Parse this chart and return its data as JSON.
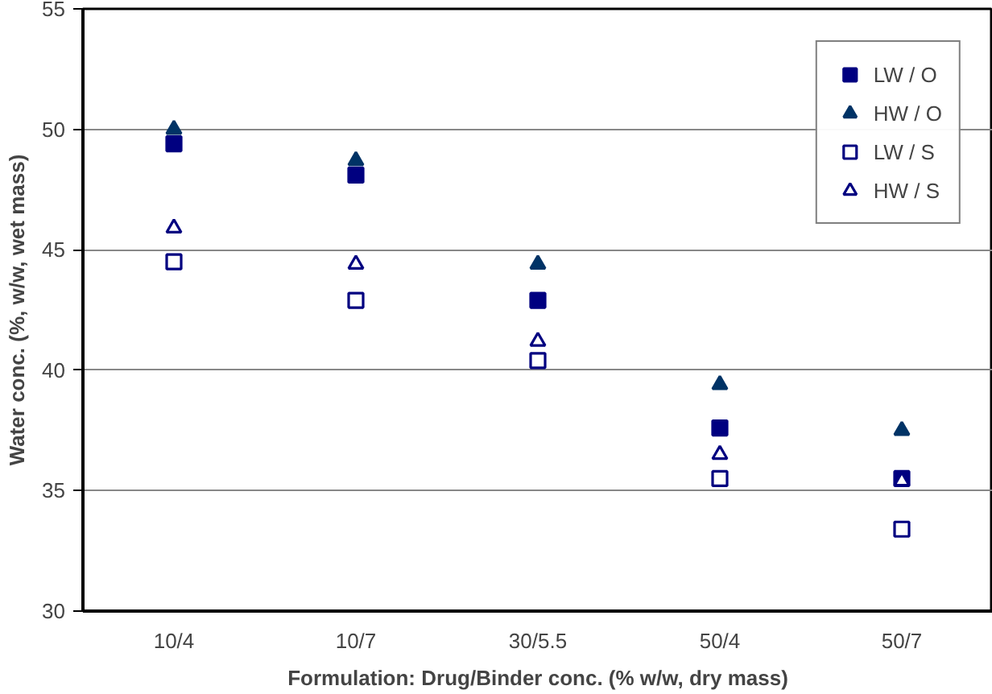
{
  "chart_data": {
    "type": "scatter",
    "xlabel": "Formulation: Drug/Binder conc. (% w/w, dry mass)",
    "ylabel": "Water conc. (%, w/w, wet mass)",
    "categories": [
      "10/4",
      "10/7",
      "30/5.5",
      "50/4",
      "50/7"
    ],
    "series": [
      {
        "name": "LW / O",
        "color": "#000080",
        "marker": "square",
        "values": [
          49.4,
          48.1,
          42.9,
          37.6,
          35.5
        ]
      },
      {
        "name": "HW / O",
        "color": "#003366",
        "marker": "triangle",
        "values": [
          50.0,
          48.7,
          44.4,
          39.4,
          37.5
        ]
      },
      {
        "name": "LW / S",
        "color": "#000080",
        "marker": "square-open",
        "values": [
          44.5,
          42.9,
          40.4,
          35.5,
          33.4
        ]
      },
      {
        "name": "HW / S",
        "color": "#000080",
        "marker": "triangle-open",
        "values": [
          45.9,
          44.4,
          41.2,
          36.5,
          35.4
        ]
      }
    ],
    "ylim": [
      30,
      55
    ],
    "yticks": [
      30,
      35,
      40,
      45,
      50,
      55
    ],
    "grid": "y",
    "legend": "top right"
  }
}
